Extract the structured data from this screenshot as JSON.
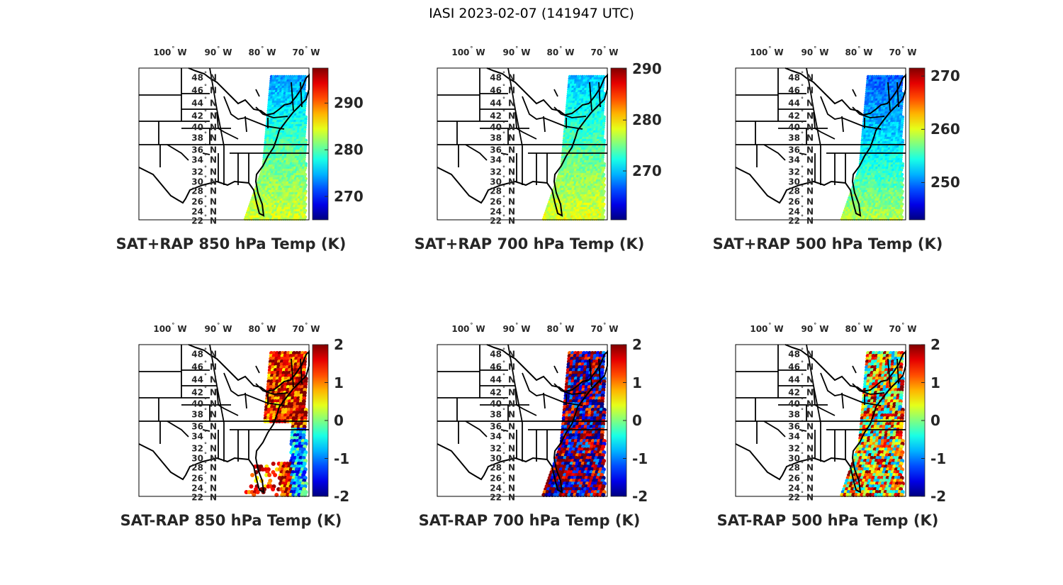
{
  "figure_title": "IASI 2023-02-07 (141947 UTC)",
  "lon_labels": [
    "100",
    "90",
    "80",
    "70"
  ],
  "lon_suffix": "W",
  "lat_labels": [
    "48",
    "46",
    "44",
    "42",
    "40",
    "38",
    "36",
    "34",
    "32",
    "30",
    "28",
    "26",
    "24",
    "22"
  ],
  "lat_suffix": "N",
  "deg_symbol": "°",
  "panels": [
    {
      "title": "SAT+RAP 850 hPa Temp (K)",
      "kind": "total",
      "cmin": 265,
      "cmax": 297.5,
      "ticks": [
        "270",
        "280",
        "290"
      ],
      "tick_values": [
        270,
        280,
        290
      ]
    },
    {
      "title": "SAT+RAP 700 hPa Temp (K)",
      "kind": "total",
      "cmin": 260.4,
      "cmax": 290.2,
      "ticks": [
        "270",
        "280",
        "290"
      ],
      "tick_values": [
        270,
        280,
        290
      ]
    },
    {
      "title": "SAT+RAP 500 hPa Temp (K)",
      "kind": "total",
      "cmin": 243,
      "cmax": 271.5,
      "ticks": [
        "250",
        "260",
        "270"
      ],
      "tick_values": [
        250,
        260,
        270
      ]
    },
    {
      "title": "SAT-RAP 850 hPa Temp (K)",
      "kind": "diff",
      "cmin": -2,
      "cmax": 2,
      "ticks": [
        "-2",
        "-1",
        "0",
        "1",
        "2"
      ],
      "tick_values": [
        -2,
        -1,
        0,
        1,
        2
      ]
    },
    {
      "title": "SAT-RAP 700 hPa Temp (K)",
      "kind": "diff",
      "cmin": -2,
      "cmax": 2,
      "ticks": [
        "-2",
        "-1",
        "0",
        "1",
        "2"
      ],
      "tick_values": [
        -2,
        -1,
        0,
        1,
        2
      ]
    },
    {
      "title": "SAT-RAP 500 hPa Temp (K)",
      "kind": "diff",
      "cmin": -2,
      "cmax": 2,
      "ticks": [
        "-2",
        "-1",
        "0",
        "1",
        "2"
      ],
      "tick_values": [
        -2,
        -1,
        0,
        1,
        2
      ]
    }
  ]
}
